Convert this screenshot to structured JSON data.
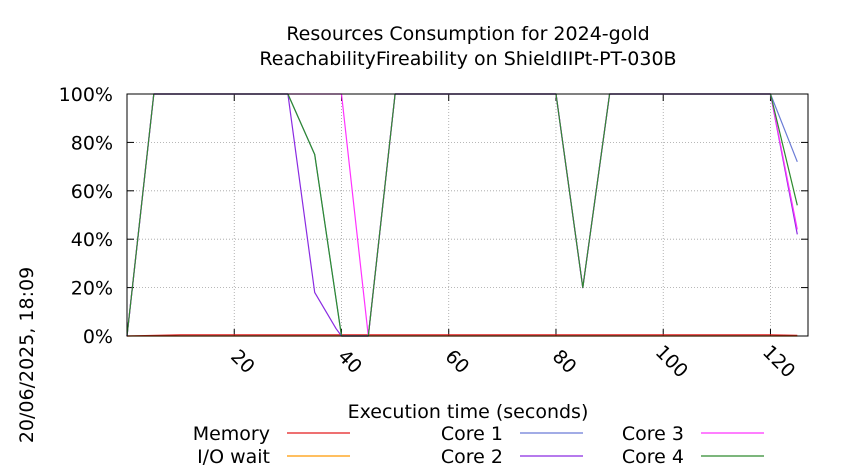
{
  "chart_data": {
    "type": "line",
    "title_line1": "Resources Consumption for 2024-gold",
    "title_line2": "ReachabilityFireability on ShieldIIPt-PT-030B",
    "side_label": "20/06/2025, 18:09",
    "xlabel": "Execution time (seconds)",
    "ylabel": "",
    "xlim": [
      0,
      127
    ],
    "ylim": [
      0,
      100
    ],
    "xticks": [
      20,
      40,
      60,
      80,
      100,
      120
    ],
    "yticks": [
      0,
      20,
      40,
      60,
      80,
      100
    ],
    "yticks_labels": [
      "0%",
      "20%",
      "40%",
      "60%",
      "80%",
      "100%"
    ],
    "grid": true,
    "legend_position": "bottom",
    "series": [
      {
        "name": "Memory",
        "color": "#e41a1c",
        "points": [
          [
            0,
            0
          ],
          [
            10,
            0.5
          ],
          [
            30,
            0.5
          ],
          [
            60,
            0.5
          ],
          [
            90,
            0.5
          ],
          [
            120,
            0.5
          ],
          [
            125,
            0.3
          ]
        ]
      },
      {
        "name": "I/O wait",
        "color": "#ff9900",
        "points": [
          [
            0,
            0
          ],
          [
            125,
            0
          ]
        ]
      },
      {
        "name": "Core 1",
        "color": "#6a7bd6",
        "points": [
          [
            0,
            0
          ],
          [
            5,
            100
          ],
          [
            30,
            100
          ],
          [
            35,
            75
          ],
          [
            40,
            0
          ],
          [
            45,
            0
          ],
          [
            50,
            100
          ],
          [
            80,
            100
          ],
          [
            85,
            20
          ],
          [
            90,
            100
          ],
          [
            120,
            100
          ],
          [
            125,
            72
          ]
        ]
      },
      {
        "name": "Core 2",
        "color": "#8a2be2",
        "points": [
          [
            0,
            0
          ],
          [
            5,
            100
          ],
          [
            30,
            100
          ],
          [
            35,
            18
          ],
          [
            39,
            3
          ],
          [
            40,
            0
          ],
          [
            45,
            0
          ],
          [
            50,
            100
          ],
          [
            80,
            100
          ],
          [
            85,
            20
          ],
          [
            90,
            100
          ],
          [
            120,
            100
          ],
          [
            125,
            42
          ]
        ]
      },
      {
        "name": "Core 3",
        "color": "#ff33ff",
        "points": [
          [
            0,
            0
          ],
          [
            5,
            100
          ],
          [
            40,
            100
          ],
          [
            45,
            0
          ],
          [
            50,
            100
          ],
          [
            80,
            100
          ],
          [
            85,
            20
          ],
          [
            90,
            100
          ],
          [
            120,
            100
          ],
          [
            125,
            44
          ]
        ]
      },
      {
        "name": "Core 4",
        "color": "#2e8b2e",
        "points": [
          [
            0,
            0
          ],
          [
            5,
            100
          ],
          [
            30,
            100
          ],
          [
            35,
            75
          ],
          [
            40,
            0
          ],
          [
            45,
            0
          ],
          [
            50,
            100
          ],
          [
            80,
            100
          ],
          [
            85,
            20
          ],
          [
            90,
            100
          ],
          [
            120,
            100
          ],
          [
            125,
            54
          ]
        ]
      }
    ]
  }
}
